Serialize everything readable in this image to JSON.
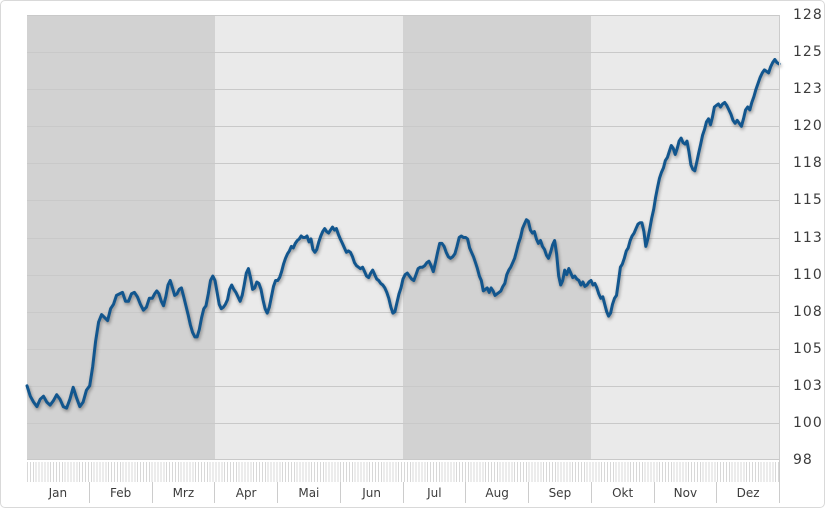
{
  "chart_data": {
    "type": "line",
    "title": "",
    "x_axis": {
      "categories": [
        "Jan",
        "Feb",
        "Mrz",
        "Apr",
        "Mai",
        "Jun",
        "Jul",
        "Aug",
        "Sep",
        "Okt",
        "Nov",
        "Dez"
      ],
      "minor_ticks": "daily",
      "minor_tick_spacing_px": 2.9
    },
    "y_axis": {
      "position": "right",
      "min": 98,
      "max": 128,
      "tick_values": [
        128,
        125.5,
        123,
        120.5,
        118,
        115.5,
        113,
        110.5,
        108,
        105.5,
        103,
        100.5,
        98
      ],
      "tick_labels": [
        "128",
        "125",
        "123",
        "120",
        "118",
        "115",
        "113",
        "110",
        "108",
        "105",
        "103",
        "100",
        "98"
      ]
    },
    "grid": true,
    "legend": "none",
    "series": {
      "color": "#12568e",
      "values_by_month": [
        [
          103.0,
          102.3,
          101.9,
          101.6,
          102.1,
          102.3,
          101.9,
          101.7,
          102.0,
          102.4,
          102.1,
          101.6,
          101.5,
          102.1,
          102.9,
          102.2,
          101.6,
          101.9,
          102.7
        ],
        [
          103.0,
          104.3,
          106.0,
          107.3,
          107.8,
          107.6,
          107.4,
          108.2,
          108.5,
          109.1,
          109.2,
          109.3,
          108.7,
          108.7,
          109.2,
          109.3,
          109.0,
          108.5,
          108.1,
          108.3,
          108.9
        ],
        [
          108.9,
          109.2,
          109.4,
          109.2,
          108.7,
          108.4,
          109.0,
          109.8,
          110.1,
          109.6,
          109.1,
          109.2,
          109.5,
          109.6,
          109.0,
          108.4,
          107.8,
          107.1,
          106.6,
          106.3,
          106.3,
          106.8,
          107.6,
          108.2,
          108.4,
          109.2,
          110.1,
          110.4
        ],
        [
          110.1,
          109.3,
          108.5,
          108.2,
          108.3,
          108.5,
          108.8,
          109.5,
          109.8,
          109.5,
          109.3,
          109.0,
          108.7,
          109.1,
          109.8,
          110.6,
          110.9,
          110.3,
          109.5,
          109.6,
          110.0,
          109.9,
          109.5,
          108.8,
          108.2,
          107.9,
          108.3,
          109.0,
          109.7,
          110.1
        ],
        [
          110.1,
          110.3,
          110.7,
          111.2,
          111.6,
          111.9,
          112.1,
          112.4,
          112.3,
          112.6,
          112.8,
          112.9,
          113.1,
          113.0,
          113.0,
          113.1,
          112.7,
          112.9,
          112.2,
          112.0,
          112.2,
          112.7,
          113.1,
          113.4,
          113.6,
          113.4,
          113.3,
          113.5,
          113.7,
          113.5,
          113.6,
          113.2
        ],
        [
          112.9,
          112.6,
          112.3,
          112.0,
          112.1,
          112.0,
          111.7,
          111.3,
          111.1,
          111.0,
          110.9,
          111.0,
          110.7,
          110.4,
          110.3,
          110.6,
          110.8,
          110.5,
          110.2,
          110.1,
          109.9,
          109.8,
          109.6,
          109.3,
          108.9,
          108.3,
          107.9,
          108.0,
          108.6,
          109.2,
          109.6
        ],
        [
          110.2,
          110.5,
          110.6,
          110.4,
          110.2,
          110.1,
          110.5,
          110.9,
          111.0,
          111.0,
          111.1,
          111.3,
          111.4,
          111.1,
          110.7,
          111.3,
          112.0,
          112.6,
          112.6,
          112.4,
          112.0,
          111.7,
          111.6,
          111.7,
          111.9,
          112.4,
          113.0,
          113.1,
          113.0
        ],
        [
          113.0,
          112.9,
          112.3,
          112.0,
          111.7,
          111.3,
          110.9,
          110.4,
          110.1,
          109.4,
          109.5,
          109.6,
          109.3,
          109.6,
          109.4,
          109.1,
          109.2,
          109.3,
          109.4,
          109.7,
          109.9,
          110.5,
          110.8,
          111.0,
          111.3,
          111.6,
          112.1,
          112.6,
          113.0,
          113.6,
          113.9,
          114.2
        ],
        [
          114.1,
          113.5,
          113.3,
          113.4,
          112.9,
          112.6,
          112.8,
          112.4,
          112.2,
          111.8,
          111.6,
          112.0,
          112.5,
          112.8,
          111.9,
          110.4,
          109.8,
          110.1,
          110.8,
          110.5,
          110.9,
          110.6,
          110.3,
          110.4,
          110.2,
          110.1,
          109.8,
          110.0,
          109.7,
          109.8,
          110.0
        ],
        [
          110.1,
          109.8,
          109.9,
          109.6,
          109.2,
          108.9,
          109.0,
          108.5,
          108.0,
          107.7,
          107.9,
          108.5,
          108.9,
          109.1,
          110.0,
          111.0,
          111.2,
          111.6,
          112.1,
          112.3,
          112.8,
          113.1,
          113.3,
          113.6,
          113.9,
          114.0,
          114.0,
          113.4,
          112.4,
          112.9,
          113.6,
          114.3
        ],
        [
          114.9,
          115.7,
          116.4,
          117.0,
          117.4,
          117.7,
          118.2,
          118.4,
          118.8,
          119.2,
          119.0,
          118.6,
          119.0,
          119.5,
          119.7,
          119.4,
          119.3,
          119.5,
          118.8,
          117.9,
          117.6,
          117.5,
          118.1,
          118.7,
          119.3,
          119.9,
          120.3,
          120.8,
          121.0,
          120.6,
          121.1,
          121.8
        ],
        [
          121.9,
          122.0,
          121.8,
          122.0,
          122.1,
          121.9,
          121.6,
          121.3,
          120.9,
          120.7,
          120.9,
          120.7,
          120.5,
          121.0,
          121.6,
          121.8,
          121.6,
          122.1,
          122.5,
          123.0,
          123.4,
          123.8,
          124.1,
          124.3,
          124.2,
          124.1,
          124.5,
          124.8,
          125.0,
          124.8,
          124.7
        ]
      ]
    },
    "style": {
      "quarter_band_dark": "#d2d2d2",
      "quarter_band_light": "#eaeaea",
      "gridline_color": "#c9c9c9",
      "axis_text_color": "#3c3c3c",
      "month_separator_color": "#cccccc",
      "minor_tick_color": "#d8d8d8",
      "widget_border_color": "#d9d9d9",
      "line_color": "#12568e"
    }
  }
}
